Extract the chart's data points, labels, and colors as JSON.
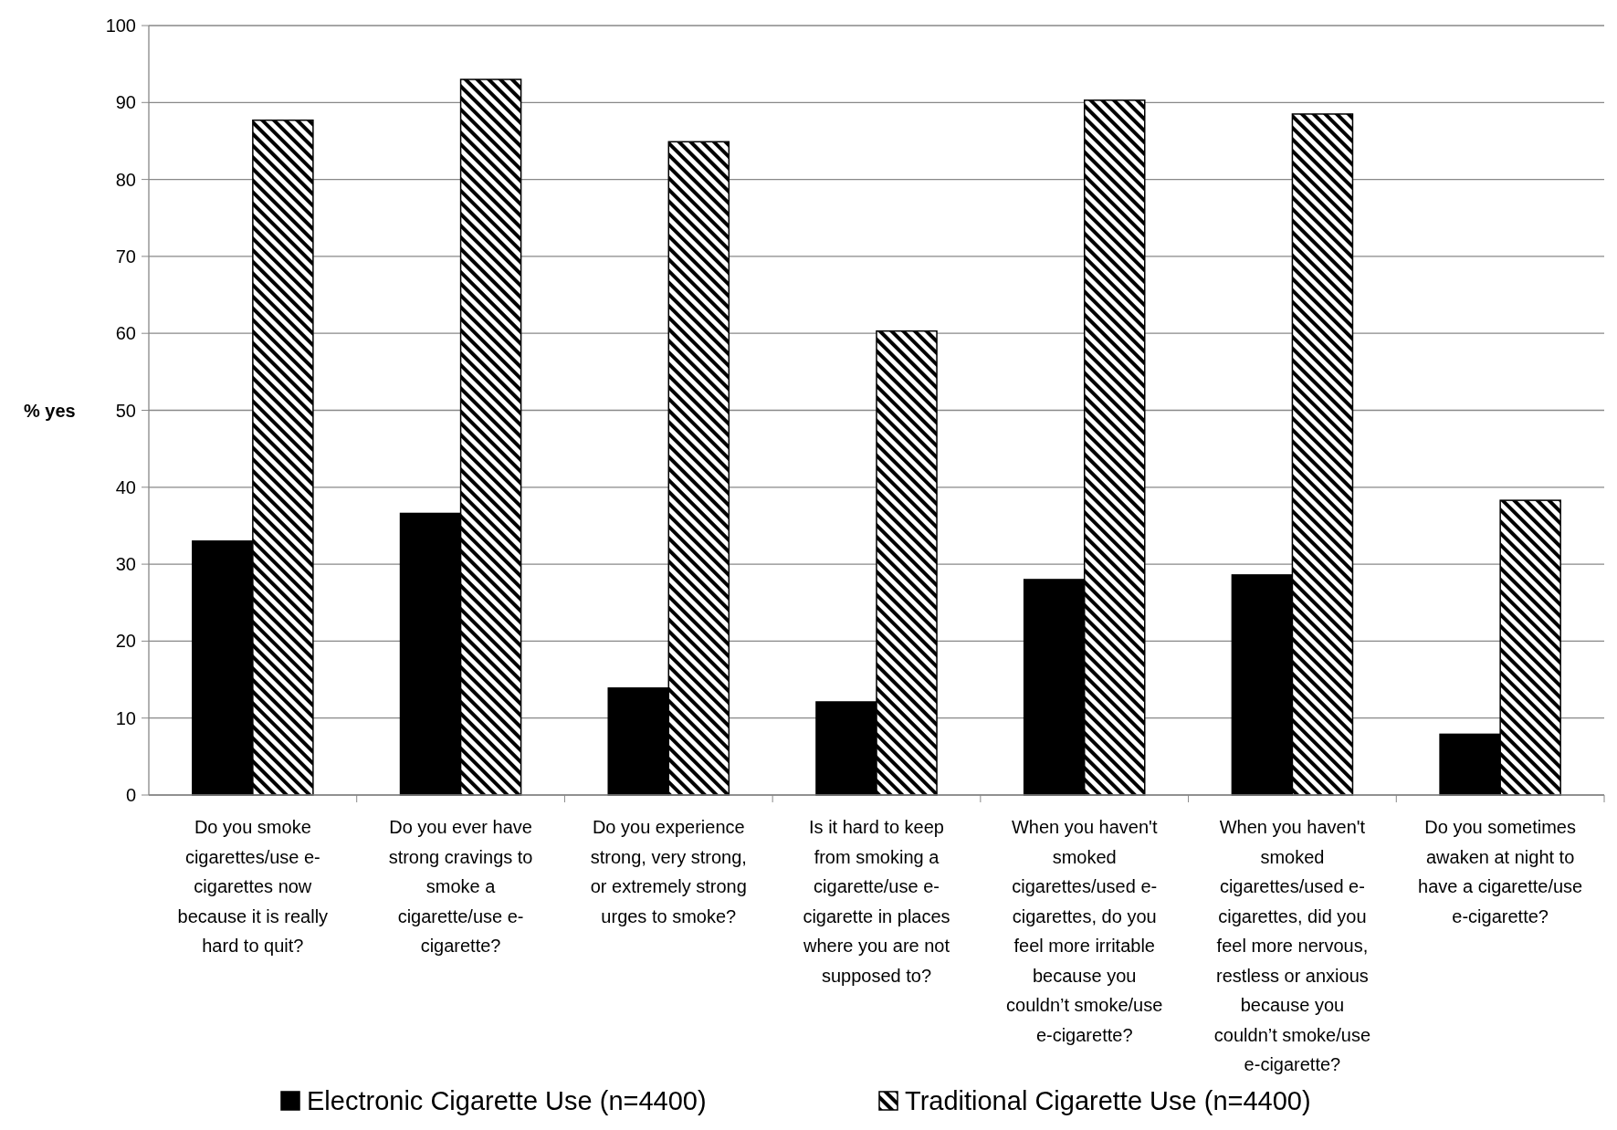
{
  "chart_data": {
    "type": "bar",
    "ylabel": "% yes",
    "categories": [
      "Do you smoke\ncigarettes/use e-\ncigarettes now\nbecause it is really\nhard to quit?",
      "Do you ever have\nstrong cravings to\nsmoke a\ncigarette/use e-\ncigarette?",
      "Do you experience\nstrong, very strong,\nor extremely strong\nurges to smoke?",
      "Is it hard to keep\nfrom smoking a\ncigarette/use e-\ncigarette in places\nwhere you are not\nsupposed to?",
      "When you haven't\nsmoked\ncigarettes/used e-\ncigarettes, do you\nfeel more irritable\nbecause you\ncouldn’t smoke/use\ne-cigarette?",
      "When you haven't\nsmoked\ncigarettes/used e-\ncigarettes, did you\nfeel more nervous,\nrestless or anxious\nbecause you\ncouldn’t smoke/use\ne-cigarette?",
      "Do you sometimes\nawaken at night to\nhave a cigarette/use\ne-cigarette?"
    ],
    "series": [
      {
        "name": "Electronic Cigarette Use (n=4400)",
        "color": "#000000",
        "values": [
          33.0,
          36.6,
          13.9,
          12.1,
          28.0,
          28.6,
          7.9
        ]
      },
      {
        "name": "Traditional Cigarette Use (n=4400)",
        "color": "#000000",
        "values": [
          87.7,
          93.0,
          84.9,
          60.3,
          90.3,
          88.5,
          38.3
        ]
      }
    ],
    "ylim": [
      0,
      100
    ],
    "yticks": [
      0,
      10,
      20,
      30,
      40,
      50,
      60,
      70,
      80,
      90,
      100
    ],
    "grid": "y",
    "legend": "bottom"
  }
}
